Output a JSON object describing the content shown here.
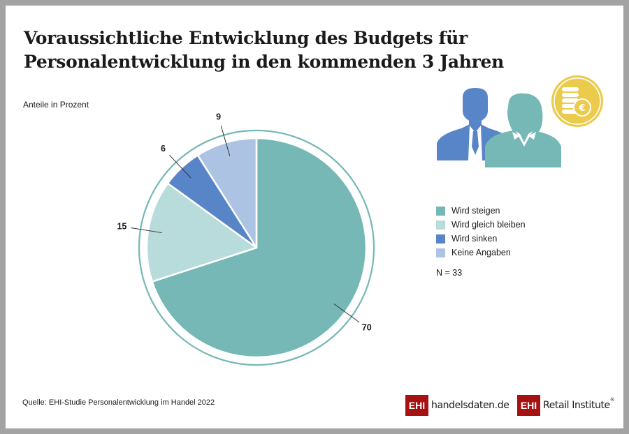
{
  "title": {
    "line1": "Voraussichtliche Entwicklung des Budgets für",
    "line2": "Personalentwicklung in den kommenden 3 Jahren"
  },
  "subtitle": "Anteile in Prozent",
  "chart_data": {
    "type": "pie",
    "title": "Voraussichtliche Entwicklung des Budgets für Personalentwicklung in den kommenden 3 Jahren",
    "unit": "Prozent",
    "start": "12 o'clock, clockwise",
    "slices": [
      {
        "label": "Wird steigen",
        "value": 70,
        "color": "#75b8b6"
      },
      {
        "label": "Wird gleich bleiben",
        "value": 15,
        "color": "#b8dcdb"
      },
      {
        "label": "Wird sinken",
        "value": 6,
        "color": "#5885c7"
      },
      {
        "label": "Keine Angaben",
        "value": 9,
        "color": "#adc3e3"
      }
    ],
    "ring_color": "#75b8b6",
    "legend_position": "right",
    "n": "N = 33"
  },
  "legend": {
    "items": [
      {
        "label": "Wird steigen",
        "color": "#75b8b6"
      },
      {
        "label": "Wird gleich bleiben",
        "color": "#b8dcdb"
      },
      {
        "label": "Wird sinken",
        "color": "#5885c7"
      },
      {
        "label": "Keine Angaben",
        "color": "#adc3e3"
      }
    ],
    "n_label": "N = 33"
  },
  "illustration": {
    "icons": [
      "businessman-icon",
      "businesswoman-icon",
      "euro-coins-icon"
    ],
    "colors": {
      "man": "#5885c7",
      "woman": "#75b8b6",
      "coin": "#ebcb4c"
    },
    "coin_symbol": "€"
  },
  "footer": {
    "source": "Quelle: EHI-Studie Personalentwicklung im Handel 2022",
    "logo1": {
      "box": "EHI",
      "text_main": "handelsdaten",
      "text_dot": ".",
      "text_tld": "de"
    },
    "logo2": {
      "box": "EHI",
      "text": "Retail Institute",
      "reg": "®"
    },
    "brand_color": "#a61212"
  }
}
